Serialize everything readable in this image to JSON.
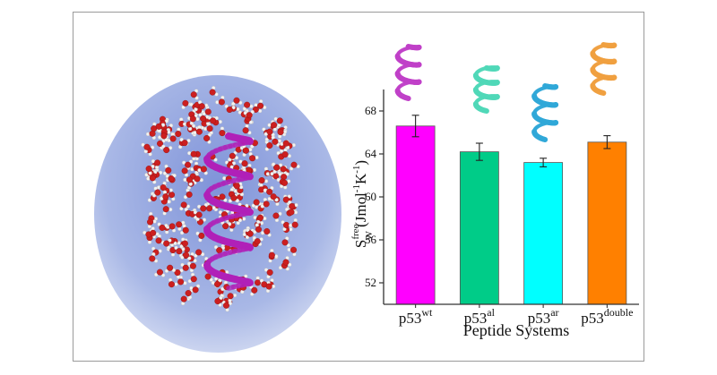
{
  "chart_data": {
    "type": "bar",
    "categories": [
      {
        "base": "p53",
        "sup": "wt"
      },
      {
        "base": "p53",
        "sup": "al"
      },
      {
        "base": "p53",
        "sup": "ar"
      },
      {
        "base": "p53",
        "sup": "double"
      }
    ],
    "values": [
      66.6,
      64.2,
      63.2,
      65.1
    ],
    "errors": [
      1.0,
      0.8,
      0.4,
      0.6
    ],
    "bar_colors": [
      "#ff00ff",
      "#00cc88",
      "#00ffff",
      "#ff8000"
    ],
    "helix_colors": [
      "#c040c8",
      "#50d8b8",
      "#30a8d8",
      "#f0a040"
    ],
    "ylim": [
      50,
      70
    ],
    "yticks": [
      52,
      56,
      60,
      64,
      68
    ],
    "ylabel": {
      "symbol": "S",
      "sup": "free",
      "sub": "W",
      "unit_open": " (Jmol",
      "unit_exp1": "-1",
      "unit_mid": "K",
      "unit_exp2": "-1",
      "unit_close": ")"
    },
    "xlabel": "Peptide Systems",
    "grid": false,
    "legend": "none"
  },
  "illustration": {
    "bubble_color": "#a9b8e6",
    "oxygen_color": "#cc1f1f",
    "hydrogen_color": "#f2f2f2",
    "helix_color": "#b020b8"
  }
}
